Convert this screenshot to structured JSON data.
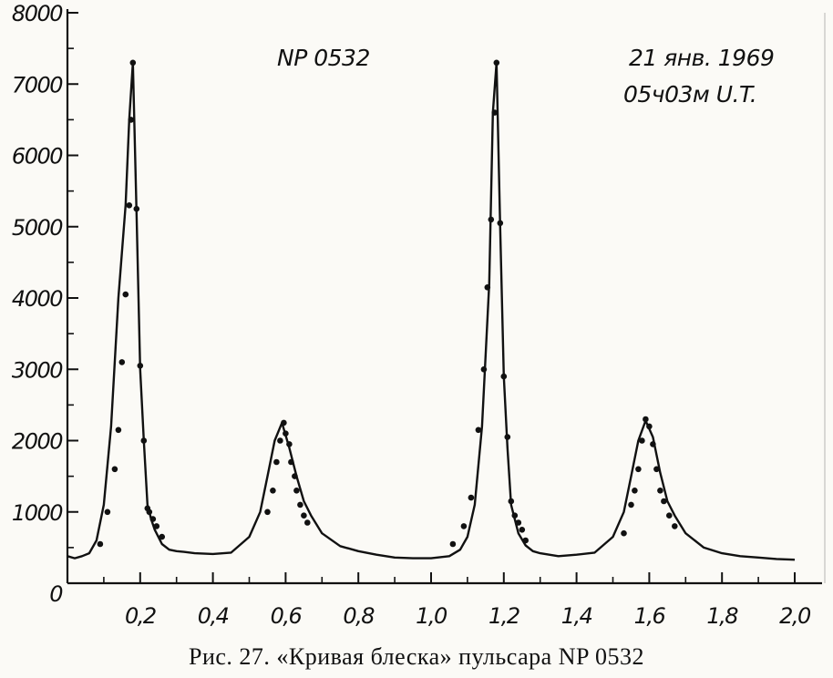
{
  "chart_data": {
    "type": "line",
    "title": "",
    "xlabel": "",
    "ylabel": "",
    "xlim": [
      0,
      2.0
    ],
    "ylim": [
      0,
      8000
    ],
    "x_ticks": [
      "0,2",
      "0,4",
      "0,6",
      "0,8",
      "1,0",
      "1,2",
      "1,4",
      "1,6",
      "1,8",
      "2,0"
    ],
    "y_ticks": [
      "0",
      "1000",
      "2000",
      "3000",
      "4000",
      "5000",
      "6000",
      "7000",
      "8000"
    ],
    "annotations": {
      "source": "NP 0532",
      "date": "21 янв. 1969",
      "time": "05ч03м U.T."
    },
    "series": [
      {
        "x": [
          0.0,
          0.02,
          0.04,
          0.06,
          0.08,
          0.1,
          0.12,
          0.14,
          0.16,
          0.17,
          0.18,
          0.19,
          0.2,
          0.21,
          0.22,
          0.23,
          0.24,
          0.26,
          0.28,
          0.3,
          0.32,
          0.35,
          0.4,
          0.45,
          0.5,
          0.53,
          0.55,
          0.57,
          0.59,
          0.61,
          0.63,
          0.65,
          0.67,
          0.7,
          0.75,
          0.8,
          0.85,
          0.9,
          0.95,
          1.0,
          1.05,
          1.08,
          1.1,
          1.12,
          1.14,
          1.16,
          1.17,
          1.18,
          1.19,
          1.2,
          1.21,
          1.22,
          1.23,
          1.24,
          1.26,
          1.28,
          1.3,
          1.35,
          1.4,
          1.45,
          1.5,
          1.53,
          1.55,
          1.57,
          1.59,
          1.61,
          1.63,
          1.65,
          1.67,
          1.7,
          1.75,
          1.8,
          1.85,
          1.9,
          1.95,
          2.0
        ],
        "y": [
          380,
          350,
          380,
          420,
          600,
          1100,
          2200,
          4000,
          5300,
          6500,
          7300,
          5200,
          3000,
          2000,
          1100,
          900,
          750,
          550,
          470,
          450,
          440,
          420,
          410,
          430,
          650,
          1000,
          1500,
          2000,
          2250,
          1900,
          1500,
          1150,
          950,
          700,
          520,
          450,
          400,
          360,
          350,
          350,
          380,
          470,
          650,
          1100,
          2200,
          4200,
          6600,
          7300,
          5000,
          2900,
          1900,
          1100,
          900,
          700,
          530,
          450,
          420,
          380,
          400,
          430,
          650,
          1000,
          1500,
          2000,
          2280,
          2050,
          1550,
          1150,
          950,
          700,
          500,
          420,
          380,
          360,
          340,
          330
        ]
      }
    ],
    "points": {
      "x": [
        0.09,
        0.11,
        0.13,
        0.14,
        0.15,
        0.16,
        0.17,
        0.175,
        0.18,
        0.19,
        0.2,
        0.21,
        0.22,
        0.225,
        0.235,
        0.245,
        0.26,
        0.55,
        0.565,
        0.575,
        0.585,
        0.595,
        0.6,
        0.61,
        0.615,
        0.625,
        0.63,
        0.64,
        0.65,
        0.66,
        1.06,
        1.09,
        1.11,
        1.13,
        1.145,
        1.155,
        1.165,
        1.175,
        1.18,
        1.19,
        1.2,
        1.21,
        1.22,
        1.23,
        1.24,
        1.25,
        1.26,
        1.53,
        1.55,
        1.56,
        1.57,
        1.58,
        1.59,
        1.6,
        1.61,
        1.62,
        1.63,
        1.64,
        1.655,
        1.67
      ],
      "y": [
        550,
        1000,
        1600,
        2150,
        3100,
        4050,
        5300,
        6500,
        7300,
        5250,
        3050,
        2000,
        1050,
        1000,
        900,
        800,
        650,
        1000,
        1300,
        1700,
        2000,
        2250,
        2100,
        1950,
        1700,
        1500,
        1300,
        1100,
        950,
        850,
        550,
        800,
        1200,
        2150,
        3000,
        4150,
        5100,
        6600,
        7300,
        5050,
        2900,
        2050,
        1150,
        950,
        850,
        750,
        600,
        700,
        1100,
        1300,
        1600,
        2000,
        2300,
        2200,
        1950,
        1600,
        1300,
        1150,
        950,
        800
      ]
    }
  },
  "caption": "Рис. 27. «Кривая блеска» пульсара NP 0532"
}
